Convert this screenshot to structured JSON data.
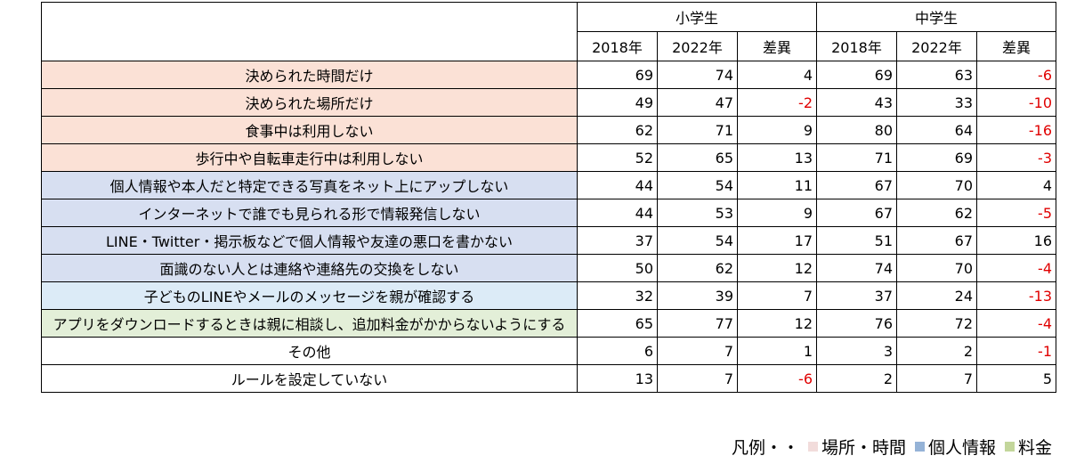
{
  "header": {
    "groups": [
      "小学生",
      "中学生"
    ],
    "subheaders": [
      "2018年",
      "2022年",
      "差異",
      "2018年",
      "2022年",
      "差異"
    ]
  },
  "category_colors": {
    "場所・時間": "#fbe1d6",
    "個人情報": "#d7dff1",
    "親確認": "#dcebf7",
    "料金": "#e3efd8",
    "その他": "#ffffff"
  },
  "rows": [
    {
      "label": "決められた時間だけ",
      "category": "場所・時間",
      "values": [
        69,
        74,
        4,
        69,
        63,
        -6
      ]
    },
    {
      "label": "決められた場所だけ",
      "category": "場所・時間",
      "values": [
        49,
        47,
        -2,
        43,
        33,
        -10
      ]
    },
    {
      "label": "食事中は利用しない",
      "category": "場所・時間",
      "values": [
        62,
        71,
        9,
        80,
        64,
        -16
      ]
    },
    {
      "label": "歩行中や自転車走行中は利用しない",
      "category": "場所・時間",
      "values": [
        52,
        65,
        13,
        71,
        69,
        -3
      ]
    },
    {
      "label": "個人情報や本人だと特定できる写真をネット上にアップしない",
      "category": "個人情報",
      "values": [
        44,
        54,
        11,
        67,
        70,
        4
      ]
    },
    {
      "label": "インターネットで誰でも見られる形で情報発信しない",
      "category": "個人情報",
      "values": [
        44,
        53,
        9,
        67,
        62,
        -5
      ]
    },
    {
      "label": "LINE・Twitter・掲示板などで個人情報や友達の悪口を書かない",
      "category": "個人情報",
      "values": [
        37,
        54,
        17,
        51,
        67,
        16
      ]
    },
    {
      "label": "面識のない人とは連絡や連絡先の交換をしない",
      "category": "個人情報",
      "values": [
        50,
        62,
        12,
        74,
        70,
        -4
      ]
    },
    {
      "label": "子どものLINEやメールのメッセージを親が確認する",
      "category": "親確認",
      "values": [
        32,
        39,
        7,
        37,
        24,
        -13
      ]
    },
    {
      "label": "アプリをダウンロードするときは親に相談し、追加料金がかからないようにする",
      "category": "料金",
      "values": [
        65,
        77,
        12,
        76,
        72,
        -4
      ]
    },
    {
      "label": "その他",
      "category": "その他",
      "values": [
        6,
        7,
        1,
        3,
        2,
        -1
      ]
    },
    {
      "label": "ルールを設定していない",
      "category": "その他",
      "values": [
        13,
        7,
        -6,
        2,
        7,
        5
      ]
    }
  ],
  "legend": {
    "lead": "凡例・・",
    "items": [
      {
        "label": "場所・時間",
        "color": "#f2dcdb"
      },
      {
        "label": "個人情報",
        "color": "#95b3d7"
      },
      {
        "label": "料金",
        "color": "#c3d69b"
      }
    ]
  }
}
